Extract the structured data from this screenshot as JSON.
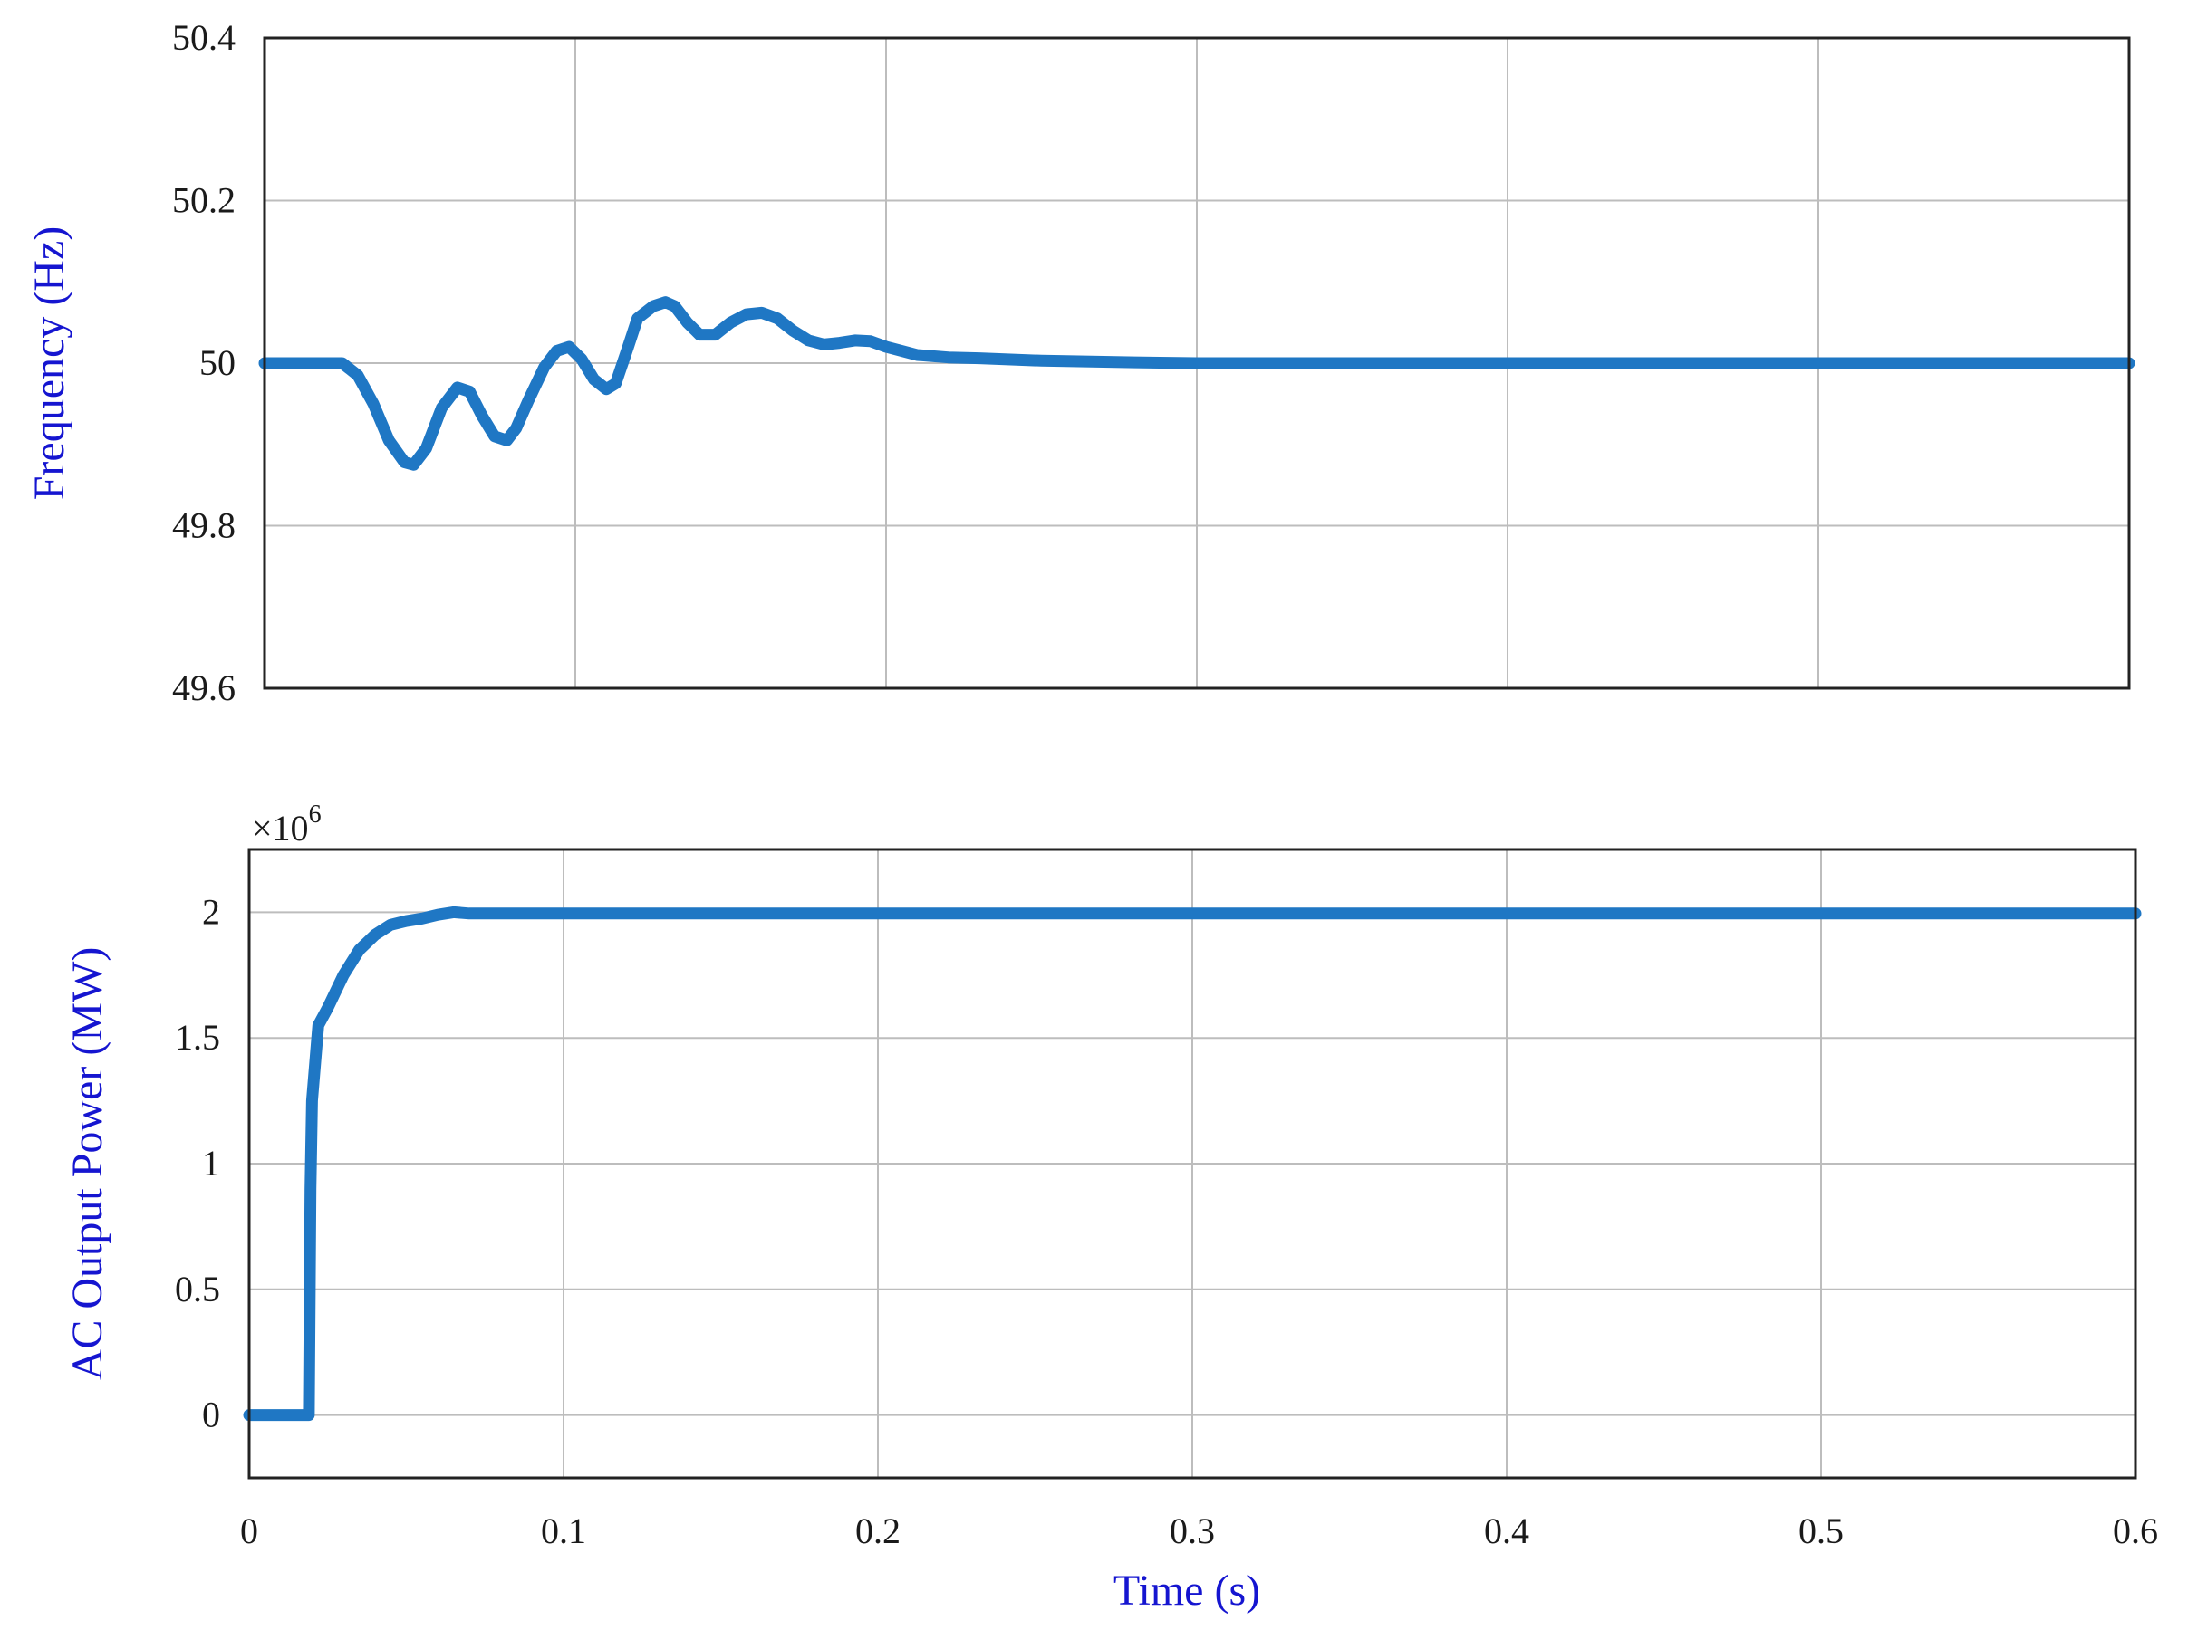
{
  "colors": {
    "line": "#1f77c4",
    "axis_label": "#1515d0",
    "grid": "#bdbdbd",
    "axes": "#222222"
  },
  "chart_data": [
    {
      "type": "line",
      "title": "",
      "xlabel": "",
      "ylabel": "Frequency (Hz)",
      "xlim": [
        0,
        0.6
      ],
      "ylim": [
        49.6,
        50.4
      ],
      "grid": true,
      "y_ticks": [
        "49.6",
        "49.8",
        "50",
        "50.2",
        "50.4"
      ],
      "x": [
        0,
        0.01,
        0.02,
        0.025,
        0.03,
        0.035,
        0.04,
        0.045,
        0.048,
        0.052,
        0.057,
        0.062,
        0.066,
        0.07,
        0.074,
        0.078,
        0.081,
        0.085,
        0.09,
        0.094,
        0.098,
        0.102,
        0.106,
        0.11,
        0.113,
        0.117,
        0.12,
        0.125,
        0.129,
        0.132,
        0.136,
        0.14,
        0.145,
        0.15,
        0.155,
        0.16,
        0.165,
        0.17,
        0.175,
        0.18,
        0.185,
        0.19,
        0.195,
        0.2,
        0.21,
        0.22,
        0.23,
        0.25,
        0.28,
        0.3,
        0.35,
        0.4,
        0.45,
        0.5,
        0.55,
        0.6
      ],
      "series": [
        {
          "values": [
            50.0,
            50.0,
            50.0,
            50.0,
            49.985,
            49.95,
            49.905,
            49.878,
            49.875,
            49.895,
            49.945,
            49.97,
            49.965,
            49.935,
            49.91,
            49.905,
            49.92,
            49.955,
            49.995,
            50.015,
            50.02,
            50.005,
            49.98,
            49.968,
            49.975,
            50.02,
            50.055,
            50.07,
            50.075,
            50.07,
            50.05,
            50.035,
            50.035,
            50.05,
            50.06,
            50.062,
            50.055,
            50.04,
            50.028,
            50.023,
            50.025,
            50.028,
            50.027,
            50.02,
            50.01,
            50.007,
            50.006,
            50.003,
            50.001,
            50.0,
            50.0,
            50.0,
            50.0,
            50.0,
            50.0,
            50.0
          ]
        }
      ]
    },
    {
      "type": "line",
      "title": "",
      "xlabel": "Time (s)",
      "ylabel": "AC Output Power (MW)",
      "y_multiplier": "×10",
      "y_multiplier_exponent": "6",
      "xlim": [
        0,
        0.6
      ],
      "ylim": [
        -0.25,
        2.25
      ],
      "grid": true,
      "x_ticks": [
        "0",
        "0.1",
        "0.2",
        "0.3",
        "0.4",
        "0.5",
        "0.6"
      ],
      "y_ticks": [
        "0",
        "0.5",
        "1",
        "1.5",
        "2"
      ],
      "x": [
        0,
        0.018,
        0.019,
        0.0195,
        0.02,
        0.022,
        0.025,
        0.03,
        0.035,
        0.04,
        0.045,
        0.05,
        0.055,
        0.06,
        0.065,
        0.07,
        0.08,
        0.1,
        0.2,
        0.3,
        0.4,
        0.5,
        0.6
      ],
      "series": [
        {
          "values": [
            0,
            0,
            0,
            0.9,
            1.25,
            1.55,
            1.62,
            1.75,
            1.85,
            1.91,
            1.95,
            1.965,
            1.975,
            1.99,
            2.0,
            1.995,
            1.995,
            1.995,
            1.995,
            1.995,
            1.995,
            1.995,
            1.995
          ]
        }
      ]
    }
  ]
}
